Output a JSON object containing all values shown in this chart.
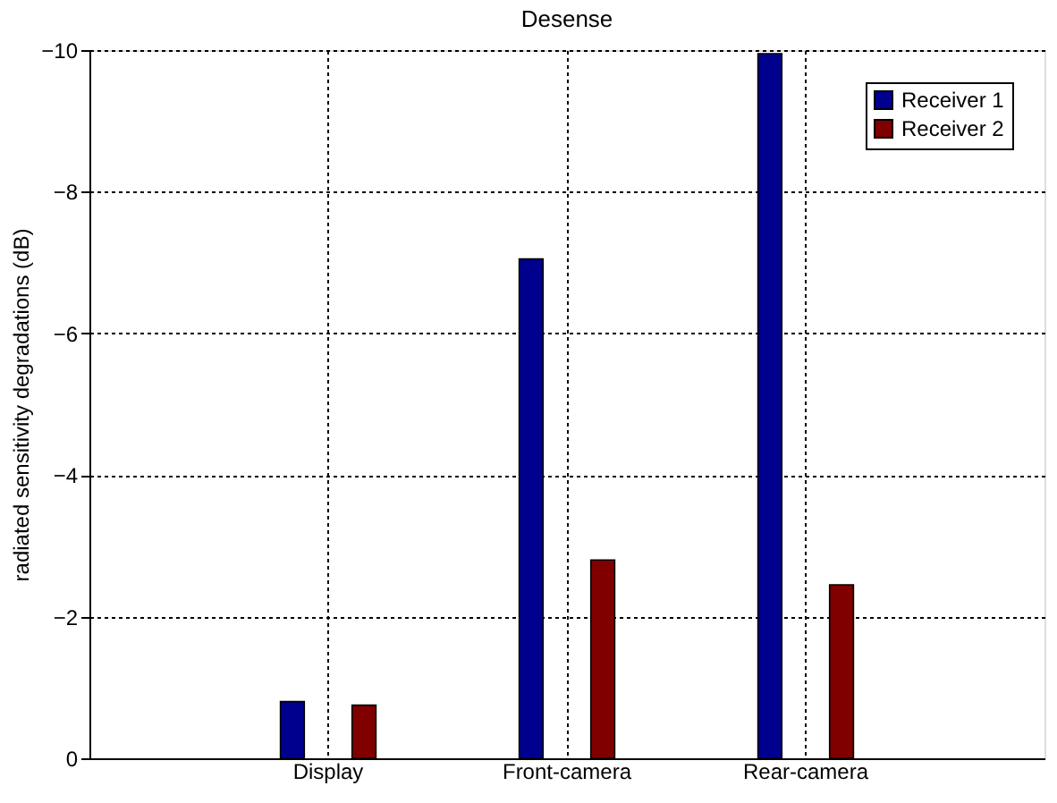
{
  "chart_data": {
    "type": "bar",
    "title": "Desense",
    "ylabel": "radiated sensitivity degradations (dB)",
    "categories": [
      "Display",
      "Front-camera",
      "Rear-camera"
    ],
    "series": [
      {
        "name": "Receiver 1",
        "color": "#00008f",
        "values": [
          -0.8,
          -7.05,
          -9.95
        ]
      },
      {
        "name": "Receiver 2",
        "color": "#800000",
        "values": [
          -0.75,
          -2.8,
          -2.45
        ]
      }
    ],
    "ylim": [
      0,
      -10
    ],
    "yticks": [
      0,
      -2,
      -4,
      -6,
      -8,
      -10
    ],
    "grid": true,
    "legend": "top right"
  }
}
